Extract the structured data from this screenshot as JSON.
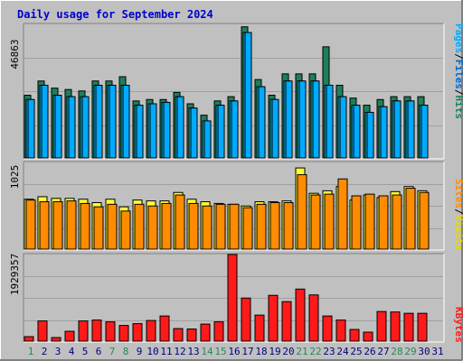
{
  "title": "Daily usage for September 2024",
  "legend": {
    "pages": "Pages",
    "files": "Files",
    "hits": "Hits",
    "sites": "Sites",
    "visits": "Visits",
    "kbytes": "KBytes",
    "sep": "/"
  },
  "colors": {
    "background": "#c0c0c0",
    "plot": "#c0c0c0",
    "title": "#0000cc",
    "grid": "#a0a0a0",
    "hits": "#1e7f5a",
    "files": "#00bfff",
    "pages": "#00aaff",
    "sites": "#ff8c00",
    "visits": "#ffff33",
    "kbytes": "#ff1a1a",
    "weekend_day": "#228b57",
    "weekday": "#000080"
  },
  "chart_data": [
    {
      "type": "bar",
      "title": "Daily usage for September 2024",
      "ylabel": "Pages / Files / Hits",
      "max_label": "46863",
      "ylim": [
        0,
        46863
      ],
      "categories": [
        "1",
        "2",
        "3",
        "4",
        "5",
        "6",
        "7",
        "8",
        "9",
        "10",
        "11",
        "12",
        "13",
        "14",
        "15",
        "16",
        "17",
        "18",
        "19",
        "20",
        "21",
        "22",
        "23",
        "24",
        "25",
        "26",
        "27",
        "28",
        "29",
        "30",
        "31"
      ],
      "series": [
        {
          "name": "Hits",
          "values": [
            22000,
            27000,
            24500,
            24000,
            23500,
            27000,
            27000,
            28500,
            20000,
            20500,
            20500,
            23000,
            19000,
            15000,
            20000,
            21500,
            46000,
            27500,
            22000,
            29500,
            29500,
            29500,
            39000,
            25500,
            21000,
            18500,
            20500,
            21500,
            21500,
            21500,
            0
          ]
        },
        {
          "name": "Files",
          "values": [
            20500,
            25500,
            22000,
            21500,
            21500,
            25500,
            25500,
            25500,
            18500,
            19000,
            19500,
            21500,
            17500,
            13000,
            18500,
            20000,
            44000,
            25000,
            20500,
            27000,
            27000,
            27000,
            25500,
            21500,
            18500,
            16000,
            18000,
            20000,
            20000,
            18500,
            0
          ]
        },
        {
          "name": "Pages",
          "values": [
            20500,
            25500,
            22000,
            21500,
            21500,
            25500,
            25500,
            25500,
            18500,
            19000,
            19500,
            21500,
            17500,
            13000,
            18500,
            20000,
            44000,
            25000,
            20500,
            27000,
            27000,
            27000,
            25500,
            21500,
            18500,
            16000,
            18000,
            20000,
            20000,
            18500,
            0
          ]
        }
      ]
    },
    {
      "type": "bar",
      "ylabel": "Sites / Visits",
      "max_label": "1025",
      "ylim": [
        0,
        1025
      ],
      "categories": [
        "1",
        "2",
        "3",
        "4",
        "5",
        "6",
        "7",
        "8",
        "9",
        "10",
        "11",
        "12",
        "13",
        "14",
        "15",
        "16",
        "17",
        "18",
        "19",
        "20",
        "21",
        "22",
        "23",
        "24",
        "25",
        "26",
        "27",
        "28",
        "29",
        "30",
        "31"
      ],
      "series": [
        {
          "name": "Visits",
          "values": [
            590,
            620,
            600,
            600,
            590,
            550,
            590,
            500,
            580,
            570,
            570,
            670,
            590,
            560,
            540,
            530,
            510,
            560,
            560,
            570,
            960,
            660,
            690,
            740,
            580,
            640,
            610,
            680,
            740,
            690,
            0
          ]
        },
        {
          "name": "Sites",
          "values": [
            580,
            560,
            560,
            570,
            540,
            500,
            530,
            450,
            530,
            510,
            540,
            640,
            540,
            510,
            530,
            530,
            490,
            530,
            550,
            550,
            880,
            640,
            650,
            830,
            630,
            650,
            630,
            640,
            720,
            670,
            0
          ]
        }
      ]
    },
    {
      "type": "bar",
      "ylabel": "KBytes",
      "max_label": "1929357",
      "ylim": [
        0,
        1929357
      ],
      "categories": [
        "1",
        "2",
        "3",
        "4",
        "5",
        "6",
        "7",
        "8",
        "9",
        "10",
        "11",
        "12",
        "13",
        "14",
        "15",
        "16",
        "17",
        "18",
        "19",
        "20",
        "21",
        "22",
        "23",
        "24",
        "25",
        "26",
        "27",
        "28",
        "29",
        "30",
        "31"
      ],
      "series": [
        {
          "name": "KBytes",
          "values": [
            100000,
            450000,
            80000,
            220000,
            450000,
            470000,
            430000,
            350000,
            390000,
            460000,
            560000,
            280000,
            270000,
            380000,
            430000,
            1929357,
            960000,
            580000,
            1020000,
            880000,
            1160000,
            1030000,
            560000,
            470000,
            260000,
            200000,
            660000,
            650000,
            620000,
            620000,
            0
          ]
        }
      ]
    }
  ],
  "weekend_days": [
    1,
    7,
    8,
    14,
    15,
    21,
    22,
    28,
    29
  ]
}
